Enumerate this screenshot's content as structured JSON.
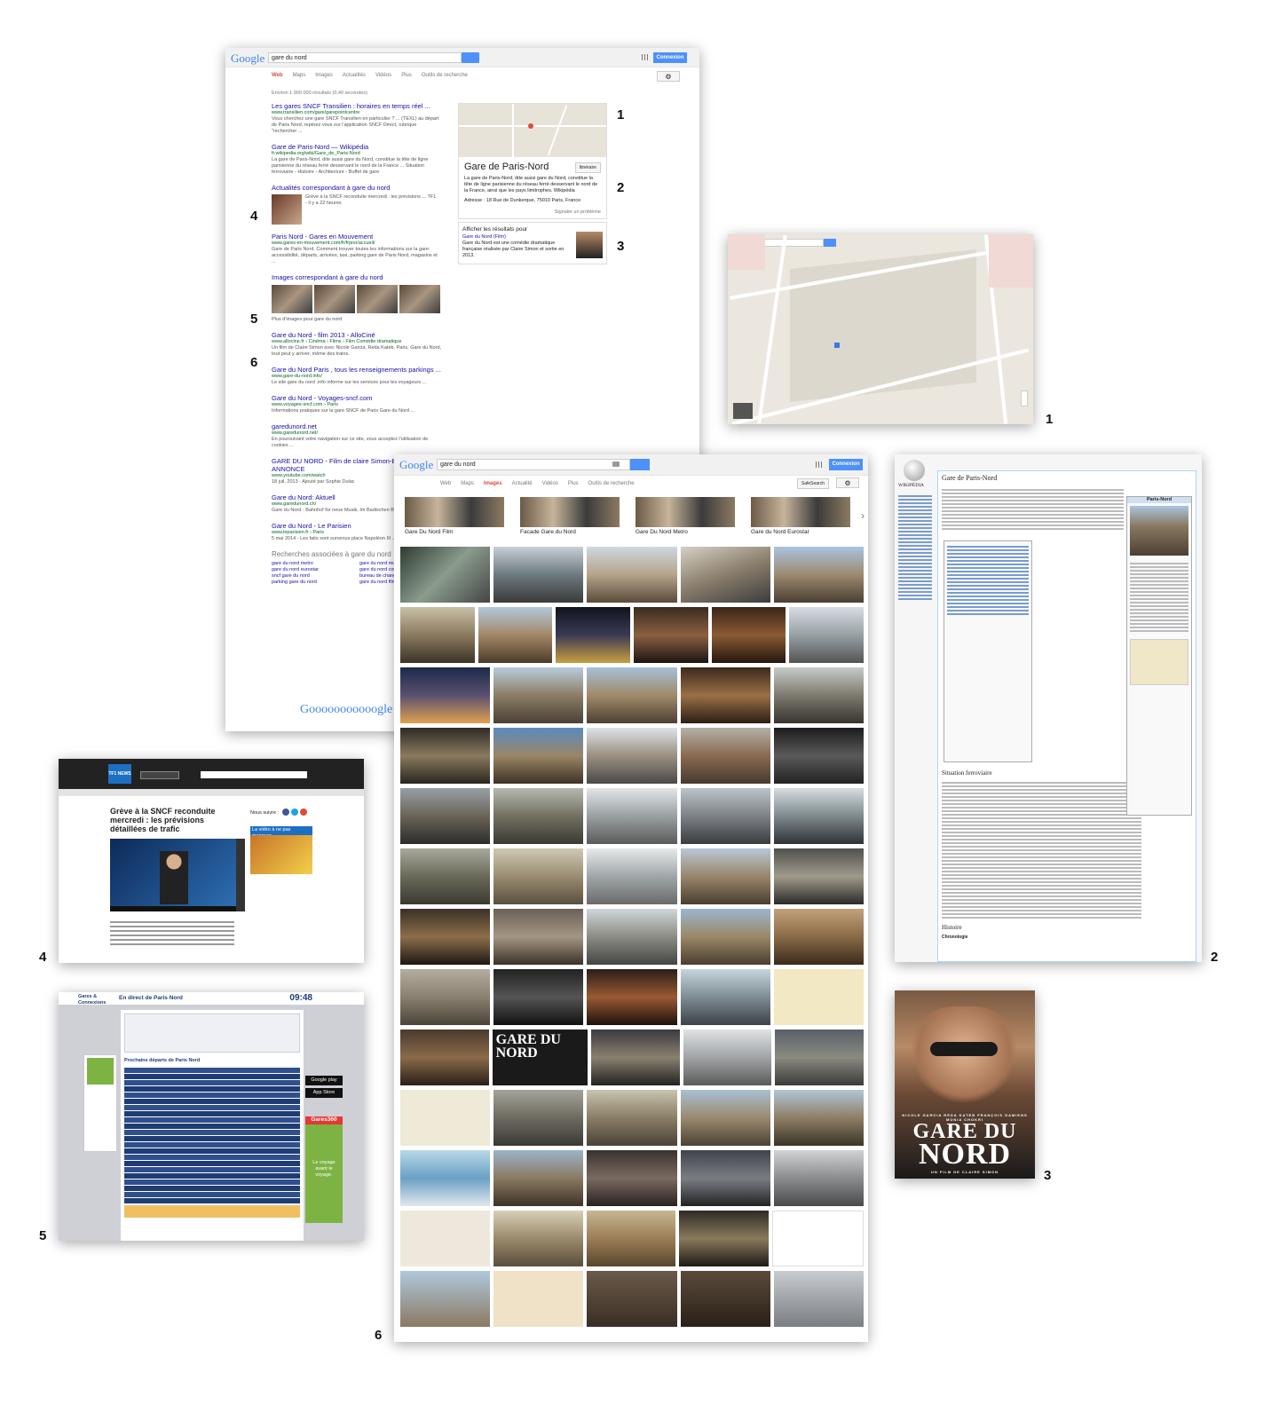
{
  "labels": {
    "n1a": "1",
    "n2a": "2",
    "n3a": "3",
    "n4a": "4",
    "n5a": "5",
    "n6a": "6",
    "n1b": "1",
    "n2b": "2",
    "n3b": "3",
    "n4b": "4",
    "n5b": "5",
    "n6b": "6"
  },
  "google_search": {
    "logo": "Google",
    "query": "gare du nord",
    "connexion": "Connexion",
    "tabs": [
      "Web",
      "Maps",
      "Images",
      "Actualités",
      "Vidéos",
      "Plus",
      "Outils de recherche"
    ],
    "stats": "Environ 1 900 000 résultats (0,40 secondes)",
    "results": [
      {
        "title": "Les gares SNCF Transilien : horaires en temps réel ...",
        "url": "www.transilien.com/gare/garepointcentre",
        "desc": "Vous cherchez une gare SNCF Transilien en particulier ? ... (TEXL) au départ de Paris Nord, repérez vous sur l'application SNCF Direct, rubrique \"rechercher ..."
      },
      {
        "title": "Gare de Paris-Nord — Wikipédia",
        "url": "fr.wikipedia.org/wiki/Gare_de_Paris-Nord",
        "desc": "La gare de Paris-Nord, dite aussi gare du Nord, constitue la tête de ligne parisienne du réseau ferré desservant le nord de la France ... Situation ferroviaire - Histoire - Architecture - Buffet de gare"
      },
      {
        "title": "Actualités correspondant à gare du nord",
        "url": "",
        "desc": "Grève à la SNCF reconduite mercredi : les prévisions ... TF1 - il y a 22 heures"
      },
      {
        "title": "Paris Nord - Gares en Mouvement",
        "url": "www.gares-en-mouvement.com/fr/frpno/accueil/",
        "desc": "Gare de Paris Nord. Comment trouver toutes les informations sur la gare: accessibilité, départs, arrivées, taxi, parking gare de Paris Nord, magasins et ..."
      },
      {
        "title": "Images correspondant à gare du nord",
        "url": "",
        "desc": "Plus d'images pour gare du nord"
      },
      {
        "title": "Gare du Nord - film 2013 - AlloCiné",
        "url": "www.allocine.fr › Cinéma › Films › Film Comédie dramatique",
        "desc": "Un film de Claire Simon avec Nicole Garcia, Reda Kateb. Paris, Gare du Nord, tout peut y arriver, même des trains."
      },
      {
        "title": "Gare du Nord Paris , tous les renseignements parkings ...",
        "url": "www.gare-du-nord.info/",
        "desc": "Le site gare du nord .info informe sur les services pour les voyageurs ..."
      },
      {
        "title": "Gare du Nord - Voyages-sncf.com",
        "url": "www.voyages-sncf.com › Paris",
        "desc": "Informations pratiques sur la gare SNCF de Paris Gare du Nord ..."
      },
      {
        "title": "garedunord.net",
        "url": "www.garedunord.net/",
        "desc": "En poursuivant votre navigation sur ce site, vous acceptez l'utilisation de cookies ..."
      },
      {
        "title": "GARE DU NORD - Film de claire Simon-BANDE ANNONCE",
        "url": "www.youtube.com/watch",
        "desc": "18 juil. 2013 - Ajouté par Sophie Dulac"
      },
      {
        "title": "Gare du Nord: Aktuell",
        "url": "www.garedunord.ch/",
        "desc": "Gare du Nord - Bahnhof für neue Musik, Im Badischen Bahnhof ..."
      },
      {
        "title": "Gare du Nord - Le Parisien",
        "url": "www.leparisien.fr › Paris",
        "desc": "5 mai 2014 - Les faits sont survenus place Napoléon III ..."
      }
    ],
    "related_title": "Recherches associées à gare du nord",
    "related": [
      "gare du nord metro",
      "gare du nord musique",
      "gare du nord eurostar",
      "gare du nord consigne",
      "sncf gare du nord",
      "bureau de change gare du nord",
      "parking gare du nord",
      "gare du nord film"
    ],
    "pager": "Gooooooooooogle",
    "kp_title": "Gare de Paris-Nord",
    "kp_btn": "Itinéraire",
    "kp_desc": "La gare de Paris-Nord, dite aussi gare du Nord, constitue la tête de ligne parisienne du réseau ferré desservant le nord de la France, ainsi que les pays limitrophes. Wikipédia",
    "kp_addr": "Adresse : 18 Rue de Dunkerque, 75010 Paris, France",
    "kp_report": "Signaler un problème",
    "kp2_title": "Afficher les résultats pour",
    "kp2_link": "Gare du Nord (Film)",
    "kp2_desc": "Gare du Nord est une comédie dramatique française réalisée par Claire Simon et sortie en 2013."
  },
  "images_search": {
    "logo": "Google",
    "query": "gare du nord",
    "connexion": "Connexion",
    "tabs": [
      "Web",
      "Maps",
      "Images",
      "Actualité",
      "Vidéos",
      "Plus",
      "Outils de recherche"
    ],
    "safesearch": "SafeSearch",
    "categories": [
      "Gare Du Nord Film",
      "Facade Gare du Nord",
      "Gare Du Nord Metro",
      "Gare du Nord Eurostar"
    ],
    "poster_text": "GARE DU NORD"
  },
  "wiki": {
    "logo": "WIKIPÉDIA",
    "title": "Gare de Paris-Nord",
    "section1": "Situation ferroviaire",
    "section2": "Histoire",
    "section3": "Chronologie",
    "infobox_title": "Paris-Nord"
  },
  "news": {
    "brand": "TF1 NEWS",
    "headline": "Grève à la SNCF reconduite mercredi : les prévisions détaillées de trafic",
    "video_title": "La vidéo à ne pas manquer",
    "follow": "Nous suivre :"
  },
  "gares": {
    "brand": "Gares & Connexions",
    "heading": "En direct de Paris Nord",
    "time": "09:48",
    "departures": "Prochains départs de Paris Nord",
    "app1": "Google play",
    "app2": "App Store",
    "promo": "Gares360",
    "slogan": "Le voyage avant le voyage."
  },
  "poster": {
    "cast": "NICOLE GARCIA   REDA KATEB   FRANÇOIS DAMIENS   MONIA CHOKRI",
    "title1": "GARE DU",
    "title2": "NORD",
    "credit": "UN FILM DE CLAIRE SIMON"
  },
  "colors": {
    "google_blue": "#4d90fe",
    "link": "#1a0dab",
    "url_green": "#006621",
    "tab_active": "#dd4b39"
  }
}
